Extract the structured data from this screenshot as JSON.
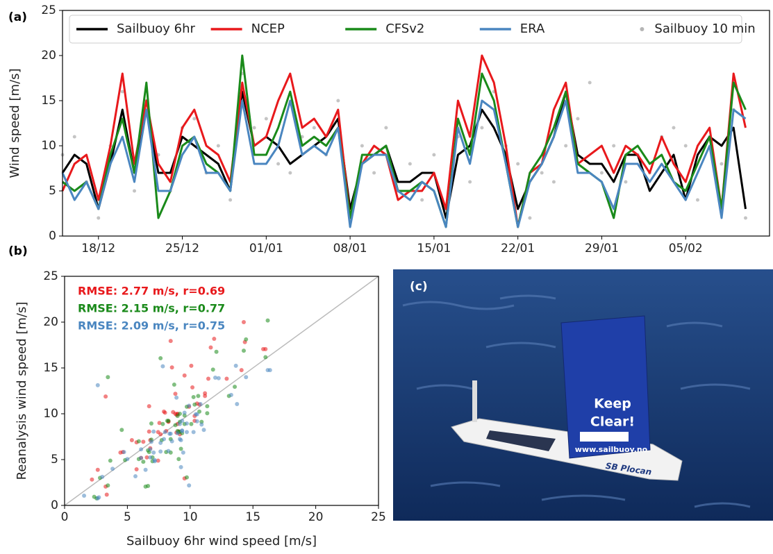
{
  "chart_data": [
    {
      "type": "line",
      "label": "(a)",
      "ylabel": "Wind speed [m/s]",
      "x": [
        "15/12",
        "16/12",
        "17/12",
        "18/12",
        "19/12",
        "20/12",
        "21/12",
        "22/12",
        "23/12",
        "24/12",
        "25/12",
        "26/12",
        "27/12",
        "28/12",
        "29/12",
        "30/12",
        "31/12",
        "01/01",
        "02/01",
        "03/01",
        "04/01",
        "05/01",
        "06/01",
        "07/01",
        "08/01",
        "09/01",
        "10/01",
        "11/01",
        "12/01",
        "13/01",
        "14/01",
        "15/01",
        "16/01",
        "17/01",
        "18/01",
        "19/01",
        "20/01",
        "21/01",
        "22/01",
        "23/01",
        "24/01",
        "25/01",
        "26/01",
        "27/01",
        "28/01",
        "29/01",
        "30/01",
        "31/01",
        "01/02",
        "02/02",
        "03/02",
        "04/02",
        "05/02",
        "06/02",
        "07/02",
        "08/02",
        "09/02",
        "10/02"
      ],
      "xlim": [
        "15/12",
        "12/02"
      ],
      "xticks": [
        "18/12",
        "25/12",
        "01/01",
        "08/01",
        "15/01",
        "22/01",
        "29/01",
        "05/02"
      ],
      "ylim": [
        0,
        25
      ],
      "yticks": [
        0,
        5,
        10,
        15,
        20,
        25
      ],
      "legend": "top",
      "series": [
        {
          "name": "Sailbuoy 6hr",
          "color": "#000000",
          "values": [
            7,
            9,
            8,
            3,
            8,
            14,
            7,
            14,
            7,
            7,
            11,
            10,
            9,
            8,
            5,
            16,
            10,
            11,
            10,
            8,
            9,
            10,
            11,
            13,
            3,
            8,
            9,
            10,
            6,
            6,
            7,
            7,
            2,
            9,
            10,
            14,
            12,
            9,
            3,
            6,
            8,
            11,
            16,
            9,
            8,
            8,
            6,
            9,
            9,
            5,
            7,
            9,
            4,
            9,
            11,
            10,
            12,
            3
          ]
        },
        {
          "name": "NCEP",
          "color": "#e8191c",
          "values": [
            5,
            8,
            9,
            4,
            10,
            18,
            8,
            15,
            8,
            6,
            12,
            14,
            10,
            9,
            6,
            17,
            10,
            11,
            15,
            18,
            12,
            13,
            11,
            14,
            2,
            8,
            10,
            9,
            4,
            5,
            5,
            7,
            3,
            15,
            11,
            20,
            17,
            10,
            1,
            7,
            8,
            14,
            17,
            8,
            9,
            10,
            7,
            10,
            9,
            7,
            11,
            8,
            6,
            10,
            12,
            3,
            18,
            12
          ]
        },
        {
          "name": "CFSv2",
          "color": "#1a8a1a",
          "values": [
            6,
            5,
            6,
            3,
            9,
            13,
            7,
            17,
            2,
            5,
            10,
            11,
            8,
            7,
            5,
            20,
            9,
            9,
            12,
            16,
            10,
            11,
            10,
            12,
            2,
            9,
            9,
            10,
            5,
            5,
            6,
            5,
            1,
            13,
            9,
            18,
            15,
            8,
            1,
            7,
            9,
            12,
            16,
            8,
            7,
            6,
            2,
            9,
            10,
            8,
            9,
            6,
            5,
            8,
            11,
            3,
            17,
            14
          ]
        },
        {
          "name": "ERA",
          "color": "#4a86c0",
          "values": [
            7,
            4,
            6,
            3,
            8,
            11,
            6,
            14,
            5,
            5,
            9,
            11,
            7,
            7,
            5,
            15,
            8,
            8,
            10,
            15,
            9,
            10,
            9,
            12,
            1,
            8,
            9,
            9,
            5,
            4,
            6,
            5,
            1,
            12,
            8,
            15,
            14,
            8,
            1,
            6,
            8,
            11,
            15,
            7,
            7,
            6,
            3,
            8,
            8,
            6,
            8,
            6,
            4,
            7,
            10,
            2,
            14,
            13
          ]
        },
        {
          "name": "Sailbuoy 10 min",
          "color": "#b5b5b5",
          "type": "scatter",
          "values": [
            9,
            11,
            6,
            2,
            10,
            16,
            5,
            15,
            9,
            5,
            12,
            13,
            7,
            10,
            4,
            18,
            12,
            13,
            8,
            7,
            11,
            12,
            9,
            15,
            2,
            10,
            7,
            12,
            5,
            8,
            4,
            9,
            3,
            11,
            6,
            12,
            16,
            10,
            8,
            2,
            7,
            6,
            10,
            13,
            17,
            7,
            10,
            6,
            9,
            7,
            11,
            12,
            10,
            4,
            11,
            8,
            14,
            2
          ]
        }
      ]
    },
    {
      "type": "scatter",
      "label": "(b)",
      "xlabel": "Sailbuoy 6hr wind speed [m/s]",
      "ylabel": "Reanalysis wind speed [m/s]",
      "xlim": [
        0,
        25
      ],
      "ylim": [
        0,
        25
      ],
      "xticks": [
        0,
        5,
        10,
        15,
        20,
        25
      ],
      "yticks": [
        0,
        5,
        10,
        15,
        20,
        25
      ],
      "x": [
        7,
        9,
        8,
        3,
        8,
        14,
        7,
        14,
        7,
        7,
        11,
        10,
        9,
        8,
        5,
        16,
        10,
        11,
        10,
        8,
        9,
        10,
        11,
        13,
        3,
        8,
        9,
        10,
        6,
        6,
        7,
        7,
        2,
        9,
        10,
        14,
        12,
        9,
        3,
        6,
        8,
        11,
        16,
        9,
        8,
        8,
        6,
        9,
        9,
        5,
        7,
        9,
        4,
        9,
        11,
        10,
        12,
        3
      ],
      "annotations": [
        {
          "text": "RMSE: 2.77 m/s, r=0.69",
          "color": "#e8191c"
        },
        {
          "text": "RMSE: 2.15 m/s, r=0.77",
          "color": "#1a8a1a"
        },
        {
          "text": "RMSE: 2.09 m/s, r=0.75",
          "color": "#4a86c0"
        }
      ],
      "series": [
        {
          "color": "#e8191c",
          "values": [
            5,
            8,
            9,
            4,
            10,
            18,
            8,
            15,
            8,
            6,
            12,
            14,
            10,
            9,
            6,
            17,
            10,
            11,
            15,
            18,
            12,
            13,
            11,
            14,
            2,
            8,
            10,
            9,
            4,
            5,
            5,
            7,
            3,
            15,
            11,
            20,
            17,
            10,
            1,
            7,
            8,
            14,
            17,
            8,
            9,
            10,
            7,
            10,
            9,
            7,
            11,
            8,
            6,
            10,
            12,
            3,
            18,
            12
          ]
        },
        {
          "color": "#1a8a1a",
          "values": [
            6,
            5,
            6,
            3,
            9,
            13,
            7,
            17,
            2,
            5,
            10,
            11,
            8,
            7,
            5,
            20,
            9,
            9,
            12,
            16,
            10,
            11,
            10,
            12,
            2,
            9,
            9,
            10,
            5,
            5,
            6,
            5,
            1,
            13,
            9,
            18,
            15,
            8,
            1,
            7,
            9,
            12,
            16,
            8,
            7,
            6,
            2,
            9,
            10,
            8,
            9,
            6,
            5,
            8,
            11,
            3,
            17,
            14
          ]
        },
        {
          "color": "#4a86c0",
          "values": [
            7,
            4,
            6,
            3,
            8,
            11,
            6,
            14,
            5,
            5,
            9,
            11,
            7,
            7,
            5,
            15,
            8,
            8,
            10,
            15,
            9,
            10,
            9,
            12,
            1,
            8,
            9,
            9,
            5,
            4,
            6,
            5,
            1,
            12,
            8,
            15,
            14,
            8,
            1,
            6,
            8,
            11,
            15,
            7,
            7,
            6,
            3,
            8,
            8,
            6,
            8,
            6,
            4,
            7,
            10,
            2,
            14,
            13
          ]
        }
      ]
    }
  ],
  "photo": {
    "label": "(c)",
    "sign": [
      "Keep",
      "Clear!"
    ],
    "url": "www.sailbuoy.no",
    "hull": "SB Plocan"
  }
}
